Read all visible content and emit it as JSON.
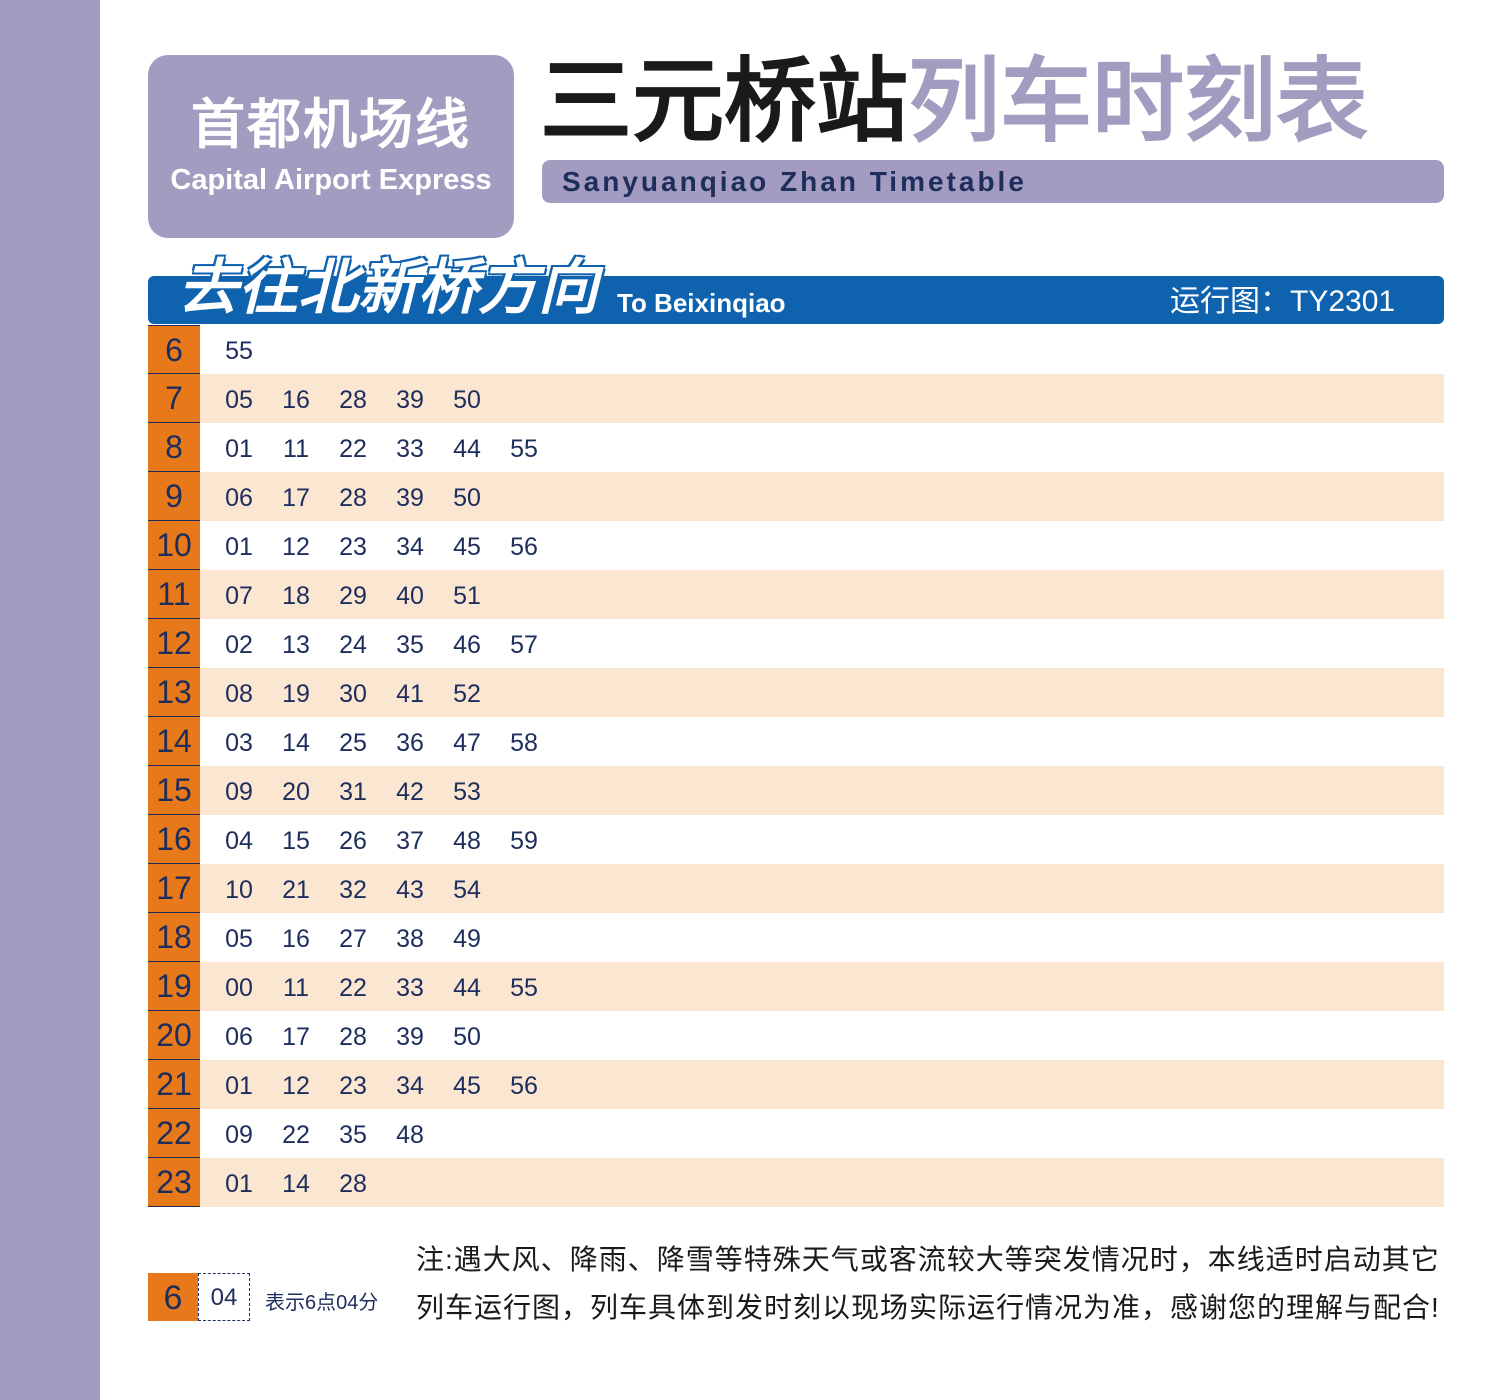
{
  "line": {
    "name_cn": "首都机场线",
    "name_en": "Capital Airport Express"
  },
  "title": {
    "station_cn": "三元桥站",
    "suffix_cn": "列车时刻表",
    "subtitle_en": "Sanyuanqiao Zhan Timetable"
  },
  "direction": {
    "cn": "去往北新桥方向",
    "en": "To Beixinqiao",
    "diagram": "运行图：TY2301"
  },
  "timetable": [
    {
      "hour": "6",
      "minutes": [
        "55"
      ]
    },
    {
      "hour": "7",
      "minutes": [
        "05",
        "16",
        "28",
        "39",
        "50"
      ]
    },
    {
      "hour": "8",
      "minutes": [
        "01",
        "11",
        "22",
        "33",
        "44",
        "55"
      ]
    },
    {
      "hour": "9",
      "minutes": [
        "06",
        "17",
        "28",
        "39",
        "50"
      ]
    },
    {
      "hour": "10",
      "minutes": [
        "01",
        "12",
        "23",
        "34",
        "45",
        "56"
      ]
    },
    {
      "hour": "11",
      "minutes": [
        "07",
        "18",
        "29",
        "40",
        "51"
      ]
    },
    {
      "hour": "12",
      "minutes": [
        "02",
        "13",
        "24",
        "35",
        "46",
        "57"
      ]
    },
    {
      "hour": "13",
      "minutes": [
        "08",
        "19",
        "30",
        "41",
        "52"
      ]
    },
    {
      "hour": "14",
      "minutes": [
        "03",
        "14",
        "25",
        "36",
        "47",
        "58"
      ]
    },
    {
      "hour": "15",
      "minutes": [
        "09",
        "20",
        "31",
        "42",
        "53"
      ]
    },
    {
      "hour": "16",
      "minutes": [
        "04",
        "15",
        "26",
        "37",
        "48",
        "59"
      ]
    },
    {
      "hour": "17",
      "minutes": [
        "10",
        "21",
        "32",
        "43",
        "54"
      ]
    },
    {
      "hour": "18",
      "minutes": [
        "05",
        "16",
        "27",
        "38",
        "49"
      ]
    },
    {
      "hour": "19",
      "minutes": [
        "00",
        "11",
        "22",
        "33",
        "44",
        "55"
      ]
    },
    {
      "hour": "20",
      "minutes": [
        "06",
        "17",
        "28",
        "39",
        "50"
      ]
    },
    {
      "hour": "21",
      "minutes": [
        "01",
        "12",
        "23",
        "34",
        "45",
        "56"
      ]
    },
    {
      "hour": "22",
      "minutes": [
        "09",
        "22",
        "35",
        "48"
      ]
    },
    {
      "hour": "23",
      "minutes": [
        "01",
        "14",
        "28"
      ]
    }
  ],
  "legend": {
    "hour": "6",
    "minute": "04",
    "text": "表示6点04分"
  },
  "note": "注:遇大风、降雨、降雪等特殊天气或客流较大等突发情况时，本线适时启动其它列车运行图，列车具体到发时刻以现场实际运行情况为准，感谢您的理解与配合!",
  "colors": {
    "lavender": "#a39cc0",
    "blue": "#0f62ae",
    "orange": "#e8791b",
    "peach": "#fbe6d2",
    "navy": "#1d2d5c"
  }
}
